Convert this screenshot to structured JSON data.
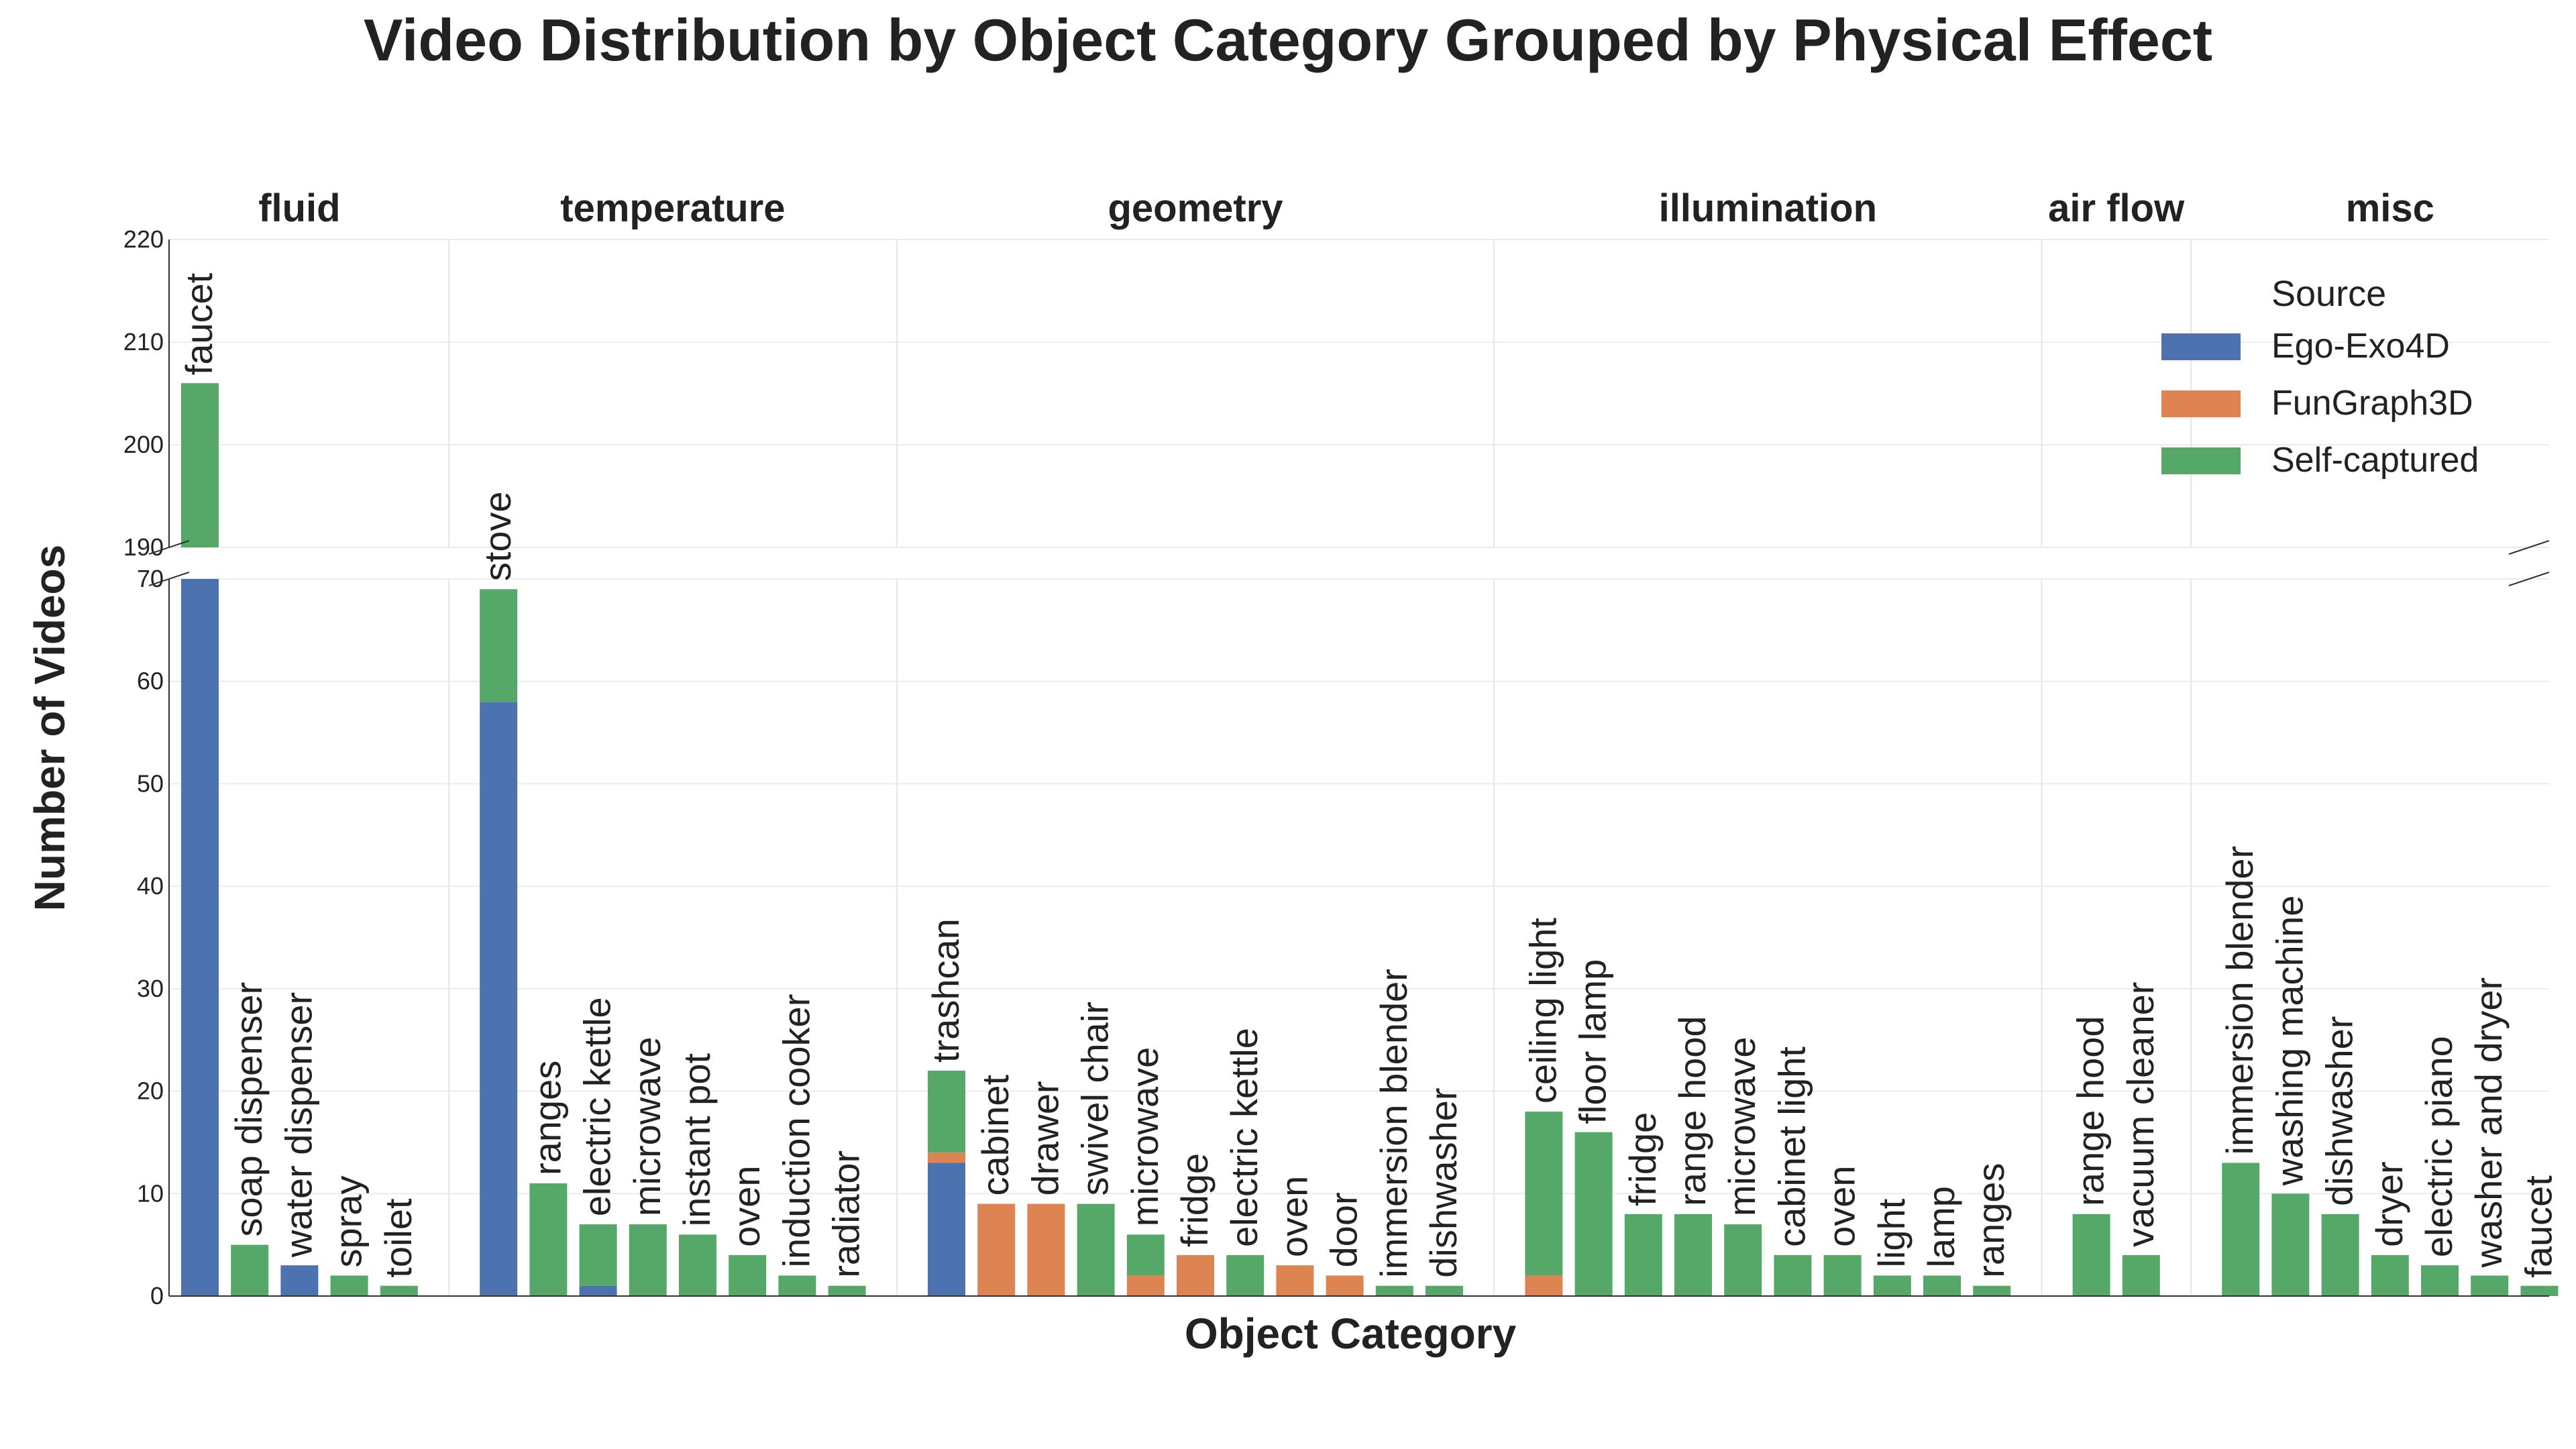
{
  "chart_data": {
    "type": "bar",
    "stacked": true,
    "title": "Video Distribution by Object Category Grouped by Physical Effect",
    "xlabel": "Object Category",
    "ylabel": "Number of Videos",
    "y_axis_broken": true,
    "ylim_lower": [
      0,
      70
    ],
    "ylim_upper": [
      190,
      220
    ],
    "yticks_lower": [
      0,
      10,
      20,
      30,
      40,
      50,
      60,
      70
    ],
    "yticks_upper": [
      190,
      200,
      210,
      220
    ],
    "grid": true,
    "legend": {
      "title": "Source",
      "position": "top-right",
      "entries": [
        "Ego-Exo4D",
        "FunGraph3D",
        "Self-captured"
      ]
    },
    "series_colors": {
      "Ego-Exo4D": "#4c72b0",
      "FunGraph3D": "#dd8452",
      "Self-captured": "#55a868"
    },
    "groups": [
      {
        "name": "fluid",
        "bars": [
          {
            "label": "faucet",
            "Ego-Exo4D": 70,
            "FunGraph3D": 0,
            "Self-captured": 136
          },
          {
            "label": "soap dispenser",
            "Ego-Exo4D": 0,
            "FunGraph3D": 0,
            "Self-captured": 5
          },
          {
            "label": "water dispenser",
            "Ego-Exo4D": 3,
            "FunGraph3D": 0,
            "Self-captured": 0
          },
          {
            "label": "spray",
            "Ego-Exo4D": 0,
            "FunGraph3D": 0,
            "Self-captured": 2
          },
          {
            "label": "toilet",
            "Ego-Exo4D": 0,
            "FunGraph3D": 0,
            "Self-captured": 1
          }
        ]
      },
      {
        "name": "temperature",
        "bars": [
          {
            "label": "stove",
            "Ego-Exo4D": 58,
            "FunGraph3D": 0,
            "Self-captured": 11
          },
          {
            "label": "ranges",
            "Ego-Exo4D": 0,
            "FunGraph3D": 0,
            "Self-captured": 11
          },
          {
            "label": "electric kettle",
            "Ego-Exo4D": 1,
            "FunGraph3D": 0,
            "Self-captured": 6
          },
          {
            "label": "microwave",
            "Ego-Exo4D": 0,
            "FunGraph3D": 0,
            "Self-captured": 7
          },
          {
            "label": "instant pot",
            "Ego-Exo4D": 0,
            "FunGraph3D": 0,
            "Self-captured": 6
          },
          {
            "label": "oven",
            "Ego-Exo4D": 0,
            "FunGraph3D": 0,
            "Self-captured": 4
          },
          {
            "label": "induction cooker",
            "Ego-Exo4D": 0,
            "FunGraph3D": 0,
            "Self-captured": 2
          },
          {
            "label": "radiator",
            "Ego-Exo4D": 0,
            "FunGraph3D": 0,
            "Self-captured": 1
          }
        ]
      },
      {
        "name": "geometry",
        "bars": [
          {
            "label": "trashcan",
            "Ego-Exo4D": 13,
            "FunGraph3D": 1,
            "Self-captured": 8
          },
          {
            "label": "cabinet",
            "Ego-Exo4D": 0,
            "FunGraph3D": 9,
            "Self-captured": 0
          },
          {
            "label": "drawer",
            "Ego-Exo4D": 0,
            "FunGraph3D": 9,
            "Self-captured": 0
          },
          {
            "label": "swivel chair",
            "Ego-Exo4D": 0,
            "FunGraph3D": 0,
            "Self-captured": 9
          },
          {
            "label": "microwave",
            "Ego-Exo4D": 0,
            "FunGraph3D": 2,
            "Self-captured": 4
          },
          {
            "label": "fridge",
            "Ego-Exo4D": 0,
            "FunGraph3D": 4,
            "Self-captured": 0
          },
          {
            "label": "electric kettle",
            "Ego-Exo4D": 0,
            "FunGraph3D": 0,
            "Self-captured": 4
          },
          {
            "label": "oven",
            "Ego-Exo4D": 0,
            "FunGraph3D": 3,
            "Self-captured": 0
          },
          {
            "label": "door",
            "Ego-Exo4D": 0,
            "FunGraph3D": 2,
            "Self-captured": 0
          },
          {
            "label": "immersion blender",
            "Ego-Exo4D": 0,
            "FunGraph3D": 0,
            "Self-captured": 1
          },
          {
            "label": "dishwasher",
            "Ego-Exo4D": 0,
            "FunGraph3D": 0,
            "Self-captured": 1
          }
        ]
      },
      {
        "name": "illumination",
        "bars": [
          {
            "label": "ceiling light",
            "Ego-Exo4D": 0,
            "FunGraph3D": 2,
            "Self-captured": 16
          },
          {
            "label": "floor lamp",
            "Ego-Exo4D": 0,
            "FunGraph3D": 0,
            "Self-captured": 16
          },
          {
            "label": "fridge",
            "Ego-Exo4D": 0,
            "FunGraph3D": 0,
            "Self-captured": 8
          },
          {
            "label": "range hood",
            "Ego-Exo4D": 0,
            "FunGraph3D": 0,
            "Self-captured": 8
          },
          {
            "label": "microwave",
            "Ego-Exo4D": 0,
            "FunGraph3D": 0,
            "Self-captured": 7
          },
          {
            "label": "cabinet light",
            "Ego-Exo4D": 0,
            "FunGraph3D": 0,
            "Self-captured": 4
          },
          {
            "label": "oven",
            "Ego-Exo4D": 0,
            "FunGraph3D": 0,
            "Self-captured": 4
          },
          {
            "label": "light",
            "Ego-Exo4D": 0,
            "FunGraph3D": 0,
            "Self-captured": 2
          },
          {
            "label": "lamp",
            "Ego-Exo4D": 0,
            "FunGraph3D": 0,
            "Self-captured": 2
          },
          {
            "label": "ranges",
            "Ego-Exo4D": 0,
            "FunGraph3D": 0,
            "Self-captured": 1
          }
        ]
      },
      {
        "name": "air flow",
        "bars": [
          {
            "label": "range hood",
            "Ego-Exo4D": 0,
            "FunGraph3D": 0,
            "Self-captured": 8
          },
          {
            "label": "vacuum cleaner",
            "Ego-Exo4D": 0,
            "FunGraph3D": 0,
            "Self-captured": 4
          }
        ]
      },
      {
        "name": "misc",
        "bars": [
          {
            "label": "immersion blender",
            "Ego-Exo4D": 0,
            "FunGraph3D": 0,
            "Self-captured": 13
          },
          {
            "label": "washing machine",
            "Ego-Exo4D": 0,
            "FunGraph3D": 0,
            "Self-captured": 10
          },
          {
            "label": "dishwasher",
            "Ego-Exo4D": 0,
            "FunGraph3D": 0,
            "Self-captured": 8
          },
          {
            "label": "dryer",
            "Ego-Exo4D": 0,
            "FunGraph3D": 0,
            "Self-captured": 4
          },
          {
            "label": "electric piano",
            "Ego-Exo4D": 0,
            "FunGraph3D": 0,
            "Self-captured": 3
          },
          {
            "label": "washer and dryer",
            "Ego-Exo4D": 0,
            "FunGraph3D": 0,
            "Self-captured": 2
          },
          {
            "label": "faucet",
            "Ego-Exo4D": 0,
            "FunGraph3D": 0,
            "Self-captured": 1
          }
        ]
      }
    ]
  }
}
